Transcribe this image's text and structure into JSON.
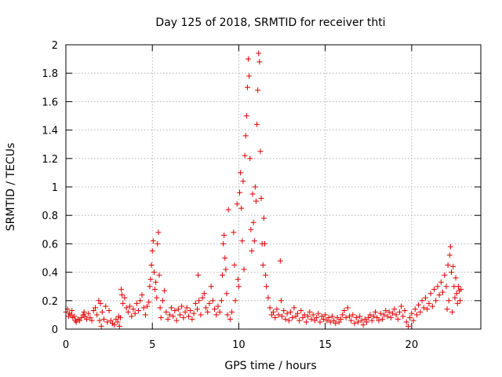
{
  "chart_data": {
    "type": "scatter",
    "title": "Day 125 of 2018, SRMTID for receiver thti",
    "xlabel": "GPS time / hours",
    "ylabel": "SRMTID / TECUs",
    "xlim": [
      0,
      24
    ],
    "ylim": [
      0,
      2
    ],
    "xticks": [
      0,
      5,
      10,
      15,
      20
    ],
    "yticks": [
      0,
      0.2,
      0.4,
      0.6,
      0.8,
      1,
      1.2,
      1.4,
      1.6,
      1.8,
      2
    ],
    "xtick_labels": [
      "0",
      "5",
      "10",
      "15",
      "20"
    ],
    "ytick_labels": [
      "0",
      "0.2",
      "0.4",
      "0.6",
      "0.8",
      "1",
      "1.2",
      "1.4",
      "1.6",
      "1.8",
      "2"
    ],
    "grid": true,
    "marker": "+",
    "color": "#e00000",
    "series": [
      {
        "name": "SRMTID",
        "points": [
          [
            0.0,
            0.12
          ],
          [
            0.1,
            0.14
          ],
          [
            0.15,
            0.09
          ],
          [
            0.2,
            0.11
          ],
          [
            0.3,
            0.1
          ],
          [
            0.35,
            0.13
          ],
          [
            0.4,
            0.08
          ],
          [
            0.5,
            0.09
          ],
          [
            0.55,
            0.06
          ],
          [
            0.6,
            0.05
          ],
          [
            0.7,
            0.07
          ],
          [
            0.8,
            0.06
          ],
          [
            0.9,
            0.08
          ],
          [
            1.0,
            0.1
          ],
          [
            1.05,
            0.12
          ],
          [
            1.1,
            0.09
          ],
          [
            1.2,
            0.07
          ],
          [
            1.3,
            0.11
          ],
          [
            1.4,
            0.08
          ],
          [
            1.5,
            0.06
          ],
          [
            1.6,
            0.13
          ],
          [
            1.7,
            0.15
          ],
          [
            1.8,
            0.1
          ],
          [
            1.9,
            0.2
          ],
          [
            1.95,
            0.06
          ],
          [
            2.0,
            0.18
          ],
          [
            2.05,
            0.02
          ],
          [
            2.1,
            0.12
          ],
          [
            2.2,
            0.07
          ],
          [
            2.3,
            0.16
          ],
          [
            2.4,
            0.05
          ],
          [
            2.5,
            0.13
          ],
          [
            2.6,
            0.06
          ],
          [
            2.7,
            0.04
          ],
          [
            2.8,
            0.03
          ],
          [
            2.9,
            0.07
          ],
          [
            3.0,
            0.05
          ],
          [
            3.05,
            0.09
          ],
          [
            3.1,
            0.02
          ],
          [
            3.15,
            0.08
          ],
          [
            3.2,
            0.28
          ],
          [
            3.25,
            0.24
          ],
          [
            3.3,
            0.18
          ],
          [
            3.4,
            0.22
          ],
          [
            3.5,
            0.15
          ],
          [
            3.6,
            0.12
          ],
          [
            3.7,
            0.16
          ],
          [
            3.8,
            0.09
          ],
          [
            3.9,
            0.14
          ],
          [
            4.0,
            0.11
          ],
          [
            4.1,
            0.18
          ],
          [
            4.2,
            0.13
          ],
          [
            4.3,
            0.2
          ],
          [
            4.4,
            0.24
          ],
          [
            4.5,
            0.15
          ],
          [
            4.6,
            0.1
          ],
          [
            4.7,
            0.16
          ],
          [
            4.8,
            0.19
          ],
          [
            4.85,
            0.3
          ],
          [
            4.9,
            0.35
          ],
          [
            4.95,
            0.45
          ],
          [
            5.0,
            0.55
          ],
          [
            5.05,
            0.62
          ],
          [
            5.1,
            0.4
          ],
          [
            5.15,
            0.28
          ],
          [
            5.2,
            0.33
          ],
          [
            5.25,
            0.22
          ],
          [
            5.3,
            0.6
          ],
          [
            5.35,
            0.68
          ],
          [
            5.4,
            0.38
          ],
          [
            5.45,
            0.15
          ],
          [
            5.5,
            0.08
          ],
          [
            5.6,
            0.2
          ],
          [
            5.7,
            0.27
          ],
          [
            5.8,
            0.12
          ],
          [
            5.9,
            0.07
          ],
          [
            6.0,
            0.1
          ],
          [
            6.1,
            0.15
          ],
          [
            6.2,
            0.09
          ],
          [
            6.3,
            0.13
          ],
          [
            6.4,
            0.06
          ],
          [
            6.5,
            0.14
          ],
          [
            6.6,
            0.1
          ],
          [
            6.7,
            0.16
          ],
          [
            6.8,
            0.08
          ],
          [
            6.9,
            0.12
          ],
          [
            7.0,
            0.15
          ],
          [
            7.1,
            0.09
          ],
          [
            7.2,
            0.13
          ],
          [
            7.3,
            0.07
          ],
          [
            7.4,
            0.11
          ],
          [
            7.5,
            0.18
          ],
          [
            7.6,
            0.14
          ],
          [
            7.65,
            0.38
          ],
          [
            7.7,
            0.2
          ],
          [
            7.8,
            0.1
          ],
          [
            7.9,
            0.22
          ],
          [
            8.0,
            0.25
          ],
          [
            8.1,
            0.15
          ],
          [
            8.2,
            0.12
          ],
          [
            8.3,
            0.18
          ],
          [
            8.4,
            0.3
          ],
          [
            8.5,
            0.2
          ],
          [
            8.6,
            0.14
          ],
          [
            8.7,
            0.1
          ],
          [
            8.8,
            0.16
          ],
          [
            8.9,
            0.12
          ],
          [
            9.0,
            0.2
          ],
          [
            9.05,
            0.38
          ],
          [
            9.1,
            0.6
          ],
          [
            9.15,
            0.66
          ],
          [
            9.2,
            0.5
          ],
          [
            9.25,
            0.42
          ],
          [
            9.3,
            0.25
          ],
          [
            9.35,
            0.1
          ],
          [
            9.4,
            0.84
          ],
          [
            9.5,
            0.07
          ],
          [
            9.6,
            0.12
          ],
          [
            9.7,
            0.68
          ],
          [
            9.75,
            0.45
          ],
          [
            9.8,
            0.2
          ],
          [
            9.9,
            0.88
          ],
          [
            9.95,
            0.35
          ],
          [
            10.0,
            0.3
          ],
          [
            10.05,
            0.96
          ],
          [
            10.1,
            1.1
          ],
          [
            10.15,
            0.85
          ],
          [
            10.2,
            0.62
          ],
          [
            10.25,
            1.04
          ],
          [
            10.3,
            0.42
          ],
          [
            10.35,
            1.22
          ],
          [
            10.4,
            1.36
          ],
          [
            10.45,
            1.5
          ],
          [
            10.5,
            1.7
          ],
          [
            10.55,
            1.9
          ],
          [
            10.6,
            1.78
          ],
          [
            10.65,
            1.2
          ],
          [
            10.7,
            0.7
          ],
          [
            10.75,
            0.55
          ],
          [
            10.8,
            0.95
          ],
          [
            10.85,
            0.75
          ],
          [
            10.9,
            0.62
          ],
          [
            10.95,
            1.0
          ],
          [
            11.0,
            0.9
          ],
          [
            11.05,
            1.44
          ],
          [
            11.1,
            1.68
          ],
          [
            11.15,
            1.94
          ],
          [
            11.2,
            1.88
          ],
          [
            11.25,
            1.25
          ],
          [
            11.3,
            0.92
          ],
          [
            11.35,
            0.6
          ],
          [
            11.4,
            0.45
          ],
          [
            11.45,
            0.78
          ],
          [
            11.5,
            0.6
          ],
          [
            11.55,
            0.38
          ],
          [
            11.6,
            0.3
          ],
          [
            11.7,
            0.22
          ],
          [
            11.8,
            0.15
          ],
          [
            11.9,
            0.1
          ],
          [
            12.0,
            0.12
          ],
          [
            12.1,
            0.08
          ],
          [
            12.2,
            0.14
          ],
          [
            12.3,
            0.1
          ],
          [
            12.4,
            0.48
          ],
          [
            12.45,
            0.2
          ],
          [
            12.5,
            0.09
          ],
          [
            12.6,
            0.13
          ],
          [
            12.7,
            0.07
          ],
          [
            12.8,
            0.11
          ],
          [
            12.9,
            0.06
          ],
          [
            13.0,
            0.12
          ],
          [
            13.1,
            0.08
          ],
          [
            13.2,
            0.15
          ],
          [
            13.3,
            0.09
          ],
          [
            13.4,
            0.11
          ],
          [
            13.5,
            0.06
          ],
          [
            13.6,
            0.13
          ],
          [
            13.7,
            0.08
          ],
          [
            13.8,
            0.1
          ],
          [
            13.9,
            0.05
          ],
          [
            14.0,
            0.09
          ],
          [
            14.1,
            0.12
          ],
          [
            14.2,
            0.07
          ],
          [
            14.3,
            0.1
          ],
          [
            14.4,
            0.06
          ],
          [
            14.5,
            0.08
          ],
          [
            14.6,
            0.11
          ],
          [
            14.7,
            0.05
          ],
          [
            14.8,
            0.09
          ],
          [
            14.9,
            0.07
          ],
          [
            15.0,
            0.1
          ],
          [
            15.1,
            0.06
          ],
          [
            15.2,
            0.08
          ],
          [
            15.3,
            0.05
          ],
          [
            15.4,
            0.09
          ],
          [
            15.5,
            0.06
          ],
          [
            15.6,
            0.04
          ],
          [
            15.7,
            0.08
          ],
          [
            15.8,
            0.05
          ],
          [
            15.9,
            0.07
          ],
          [
            16.0,
            0.1
          ],
          [
            16.1,
            0.13
          ],
          [
            16.2,
            0.08
          ],
          [
            16.3,
            0.15
          ],
          [
            16.4,
            0.09
          ],
          [
            16.5,
            0.06
          ],
          [
            16.6,
            0.1
          ],
          [
            16.7,
            0.04
          ],
          [
            16.8,
            0.08
          ],
          [
            16.9,
            0.05
          ],
          [
            17.0,
            0.09
          ],
          [
            17.1,
            0.06
          ],
          [
            17.2,
            0.03
          ],
          [
            17.3,
            0.07
          ],
          [
            17.4,
            0.05
          ],
          [
            17.5,
            0.08
          ],
          [
            17.6,
            0.1
          ],
          [
            17.7,
            0.06
          ],
          [
            17.8,
            0.09
          ],
          [
            17.9,
            0.12
          ],
          [
            18.0,
            0.08
          ],
          [
            18.1,
            0.06
          ],
          [
            18.2,
            0.11
          ],
          [
            18.3,
            0.07
          ],
          [
            18.4,
            0.1
          ],
          [
            18.5,
            0.13
          ],
          [
            18.6,
            0.09
          ],
          [
            18.7,
            0.12
          ],
          [
            18.8,
            0.08
          ],
          [
            18.9,
            0.11
          ],
          [
            19.0,
            0.14
          ],
          [
            19.1,
            0.1
          ],
          [
            19.2,
            0.07
          ],
          [
            19.3,
            0.12
          ],
          [
            19.4,
            0.16
          ],
          [
            19.5,
            0.09
          ],
          [
            19.6,
            0.13
          ],
          [
            19.7,
            0.05
          ],
          [
            19.8,
            0.02
          ],
          [
            19.9,
            0.08
          ],
          [
            20.0,
            0.11
          ],
          [
            20.1,
            0.06
          ],
          [
            20.2,
            0.14
          ],
          [
            20.3,
            0.1
          ],
          [
            20.4,
            0.17
          ],
          [
            20.5,
            0.12
          ],
          [
            20.6,
            0.2
          ],
          [
            20.7,
            0.15
          ],
          [
            20.8,
            0.22
          ],
          [
            20.9,
            0.14
          ],
          [
            21.0,
            0.18
          ],
          [
            21.1,
            0.25
          ],
          [
            21.2,
            0.16
          ],
          [
            21.3,
            0.28
          ],
          [
            21.4,
            0.2
          ],
          [
            21.5,
            0.3
          ],
          [
            21.6,
            0.24
          ],
          [
            21.7,
            0.33
          ],
          [
            21.8,
            0.26
          ],
          [
            21.9,
            0.38
          ],
          [
            22.0,
            0.3
          ],
          [
            22.05,
            0.14
          ],
          [
            22.1,
            0.45
          ],
          [
            22.15,
            0.2
          ],
          [
            22.2,
            0.52
          ],
          [
            22.25,
            0.58
          ],
          [
            22.3,
            0.4
          ],
          [
            22.35,
            0.12
          ],
          [
            22.4,
            0.44
          ],
          [
            22.45,
            0.3
          ],
          [
            22.5,
            0.22
          ],
          [
            22.55,
            0.36
          ],
          [
            22.6,
            0.25
          ],
          [
            22.65,
            0.18
          ],
          [
            22.7,
            0.3
          ],
          [
            22.75,
            0.27
          ],
          [
            22.8,
            0.2
          ],
          [
            22.85,
            0.28
          ]
        ]
      }
    ]
  }
}
